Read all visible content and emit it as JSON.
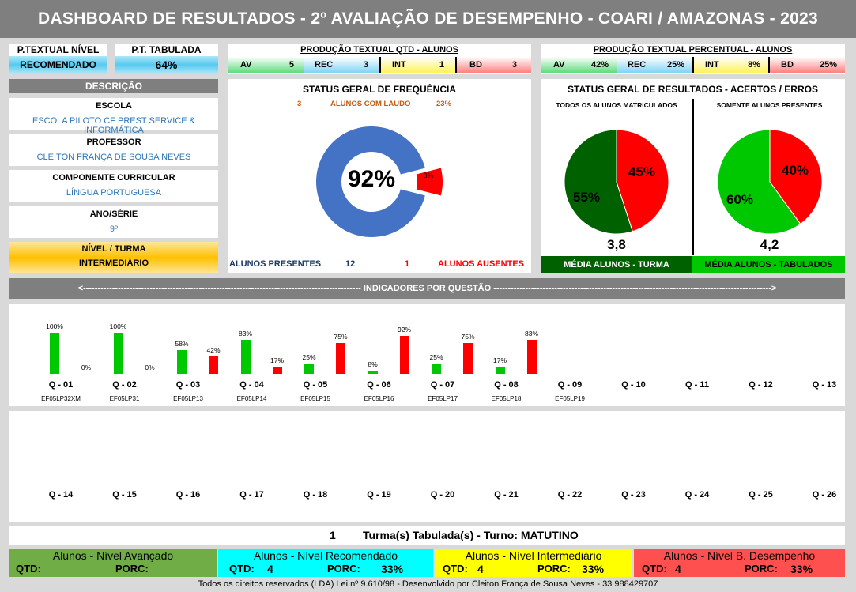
{
  "title": "DASHBOARD DE RESULTADOS - 2º AVALIAÇÃO DE DESEMPENHO - COARI / AMAZONAS - 2023",
  "nivel": {
    "label": "P.TEXTUAL NÍVEL",
    "value": "RECOMENDADO"
  },
  "tabulada": {
    "label": "P.T. TABULADA",
    "value": "64%"
  },
  "producao_qtd": {
    "title": "PRODUÇÃO TEXTUAL QTD - ALUNOS",
    "items": [
      {
        "k": "AV",
        "v": "5"
      },
      {
        "k": "REC",
        "v": "3"
      },
      {
        "k": "INT",
        "v": "1"
      },
      {
        "k": "BD",
        "v": "3"
      }
    ]
  },
  "producao_pct": {
    "title": "PRODUÇÃO TEXTUAL PERCENTUAL - ALUNOS",
    "items": [
      {
        "k": "AV",
        "v": "42%"
      },
      {
        "k": "REC",
        "v": "25%"
      },
      {
        "k": "INT",
        "v": "8%"
      },
      {
        "k": "BD",
        "v": "25%"
      }
    ]
  },
  "descricao": {
    "title": "DESCRIÇÃO",
    "escola_label": "ESCOLA",
    "escola": "ESCOLA PILOTO CF PREST SERVICE & INFORMÁTICA",
    "prof_label": "PROFESSOR",
    "prof": "CLEITON FRANÇA DE SOUSA NEVES",
    "comp_label": "COMPONENTE CURRICULAR",
    "comp": "LÍNGUA PORTUGUESA",
    "ano_label": "ANO/SÉRIE",
    "ano": "9º",
    "nivel_label": "NÍVEL / TURMA",
    "nivel": "INTERMEDIÁRIO"
  },
  "frequencia": {
    "title": "STATUS GERAL DE FREQUÊNCIA",
    "laudo_qtd": "3",
    "laudo_label": "ALUNOS COM LAUDO",
    "laudo_pct": "23%",
    "center": "92%",
    "slice": "8%",
    "present_fraction": 0.92,
    "presentes_label": "ALUNOS PRESENTES",
    "presentes": "12",
    "ausentes": "1",
    "ausentes_label": "ALUNOS AUSENTES"
  },
  "resultados": {
    "title": "STATUS GERAL DE RESULTADOS - ACERTOS / ERROS",
    "left": {
      "sub": "TODOS OS ALUNOS MATRICULADOS",
      "acertos": 55,
      "erros": 45,
      "acertos_label": "55%",
      "erros_label": "45%",
      "media": "3,8",
      "media_label": "MÉDIA ALUNOS - TURMA"
    },
    "right": {
      "sub": "SOMENTE ALUNOS PRESENTES",
      "acertos": 60,
      "erros": 40,
      "acertos_label": "60%",
      "erros_label": "40%",
      "media": "4,2",
      "media_label": "MÉDIA ALUNOS - TABULADOS"
    }
  },
  "indicadores_title": "<------------------------------------------------------------------------------------------------ INDICADORES POR QUESTÃO ------------------------------------------------------------------------------------------------>",
  "questions_row1": [
    "Q - 01",
    "Q - 02",
    "Q - 03",
    "Q - 04",
    "Q - 05",
    "Q - 06",
    "Q - 07",
    "Q - 08",
    "Q - 09",
    "Q - 10",
    "Q - 11",
    "Q - 12",
    "Q - 13"
  ],
  "codes_row1": [
    "EF05LP32XM",
    "EF05LP31",
    "EF05LP13",
    "EF05LP14",
    "EF05LP15",
    "EF05LP16",
    "EF05LP17",
    "EF05LP18",
    "EF05LP19",
    "",
    "",
    "",
    ""
  ],
  "questions_row2": [
    "Q - 14",
    "Q - 15",
    "Q - 16",
    "Q - 17",
    "Q - 18",
    "Q - 19",
    "Q - 20",
    "Q - 21",
    "Q - 22",
    "Q - 23",
    "Q - 24",
    "Q - 25",
    "Q - 26"
  ],
  "chart_data": {
    "type": "bar",
    "categories": [
      "Q - 01",
      "Q - 02",
      "Q - 03",
      "Q - 04",
      "Q - 05",
      "Q - 06",
      "Q - 07",
      "Q - 08"
    ],
    "series": [
      {
        "color": "#00c800",
        "values": [
          100,
          100,
          58,
          83,
          25,
          8,
          25,
          17
        ],
        "labels": [
          "100%",
          "100%",
          "58%",
          "83%",
          "25%",
          "8%",
          "25%",
          "17%"
        ]
      },
      {
        "color": "#ff0000",
        "values": [
          0,
          0,
          42,
          17,
          75,
          92,
          75,
          83
        ],
        "labels": [
          "0%",
          "0%",
          "42%",
          "17%",
          "75%",
          "92%",
          "75%",
          "83%"
        ]
      }
    ],
    "ylim": [
      0,
      100
    ]
  },
  "turma": {
    "count": "1",
    "text": "Turma(s) Tabulada(s) - Turno: MATUTINO"
  },
  "niveis": [
    {
      "title": "Alunos - Nível Avançado",
      "qtd_label": "QTD:",
      "qtd": "",
      "porc_label": "PORC:",
      "porc": "",
      "color": "#70ad47"
    },
    {
      "title": "Alunos - Nível Recomendado",
      "qtd_label": "QTD:",
      "qtd": "4",
      "porc_label": "PORC:",
      "porc": "33%",
      "color": "#00ffff"
    },
    {
      "title": "Alunos - Nível Intermediário",
      "qtd_label": "QTD:",
      "qtd": "4",
      "porc_label": "PORC:",
      "porc": "33%",
      "color": "#ffff00"
    },
    {
      "title": "Alunos - Nível B. Desempenho",
      "qtd_label": "QTD:",
      "qtd": "4",
      "porc_label": "PORC:",
      "porc": "33%",
      "color": "#ff5050"
    }
  ],
  "footer": "Todos os direitos reservados (LDA) Lei nº 9.610/98 - Desenvolvido por Cleiton França de Sousa Neves - 33 988429707"
}
